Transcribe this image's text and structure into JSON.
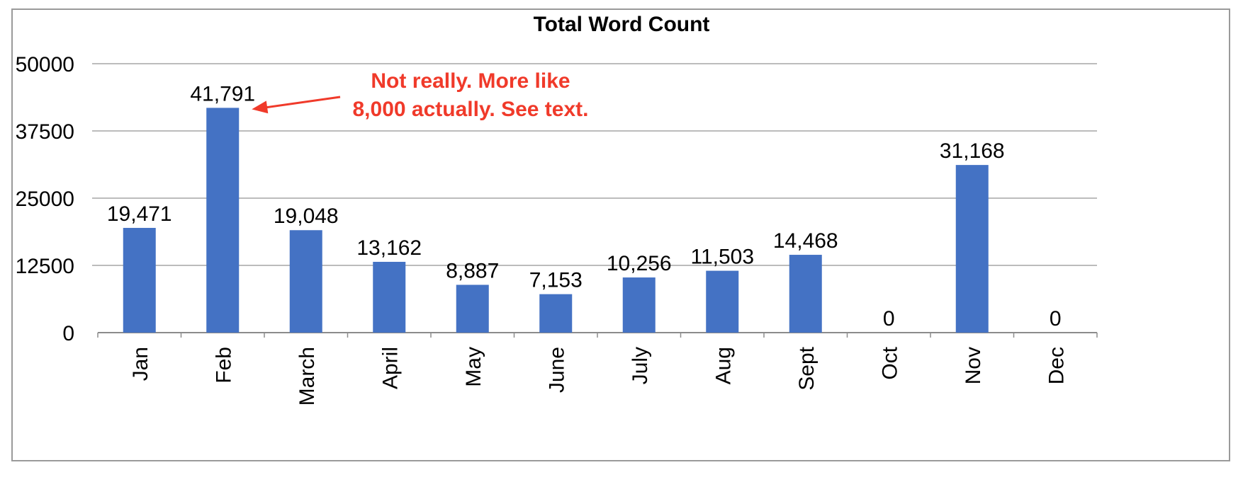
{
  "chart_data": {
    "type": "bar",
    "title": "Total Word Count",
    "categories": [
      "Jan",
      "Feb",
      "March",
      "April",
      "May",
      "June",
      "July",
      "Aug",
      "Sept",
      "Oct",
      "Nov",
      "Dec"
    ],
    "values": [
      19471,
      41791,
      19048,
      13162,
      8887,
      7153,
      10256,
      11503,
      14468,
      0,
      31168,
      0
    ],
    "data_labels": [
      "19,471",
      "41,791",
      "19,048",
      "13,162",
      "8,887",
      "7,153",
      "10,256",
      "11,503",
      "14,468",
      "0",
      "31,168",
      "0"
    ],
    "yticks": [
      "0",
      "12500",
      "25000",
      "37500",
      "50000"
    ],
    "ytick_values": [
      0,
      12500,
      25000,
      37500,
      50000
    ],
    "ylim": [
      0,
      50000
    ],
    "grid": true,
    "legend": "none",
    "bar_color": "#4472C4",
    "annotation": {
      "lines": [
        "Not really. More like",
        "8,000 actually. See text."
      ],
      "color": "#F03A2A",
      "target_category": "Feb"
    }
  }
}
